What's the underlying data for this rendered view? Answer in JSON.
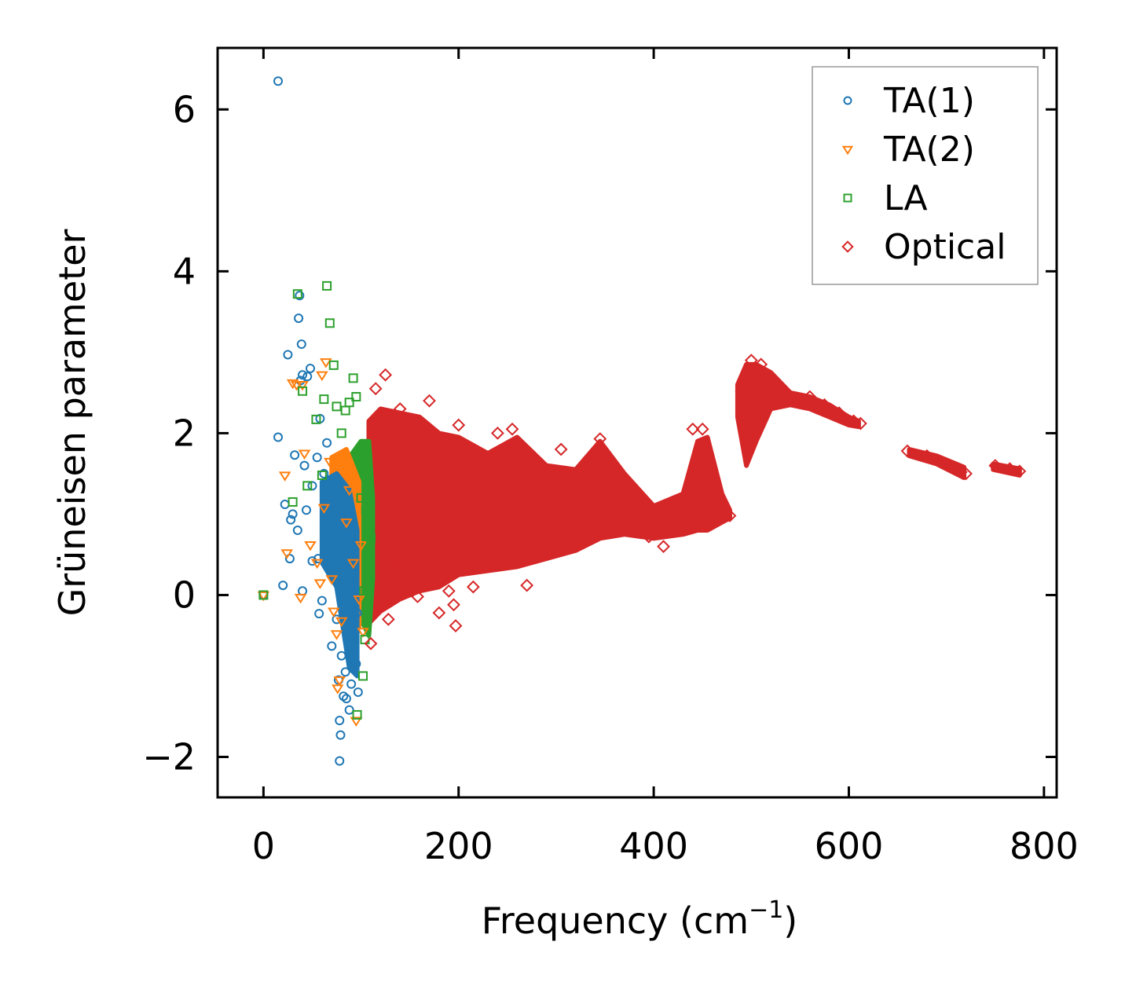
{
  "chart_data": {
    "type": "scatter",
    "title": "",
    "xlabel": "Frequency (cm",
    "xlabel_sup": "−1",
    "xlabel_close": ")",
    "ylabel": "Grüneisen parameter",
    "xlim": [
      -47,
      813
    ],
    "ylim": [
      -2.5,
      6.76
    ],
    "xticks": [
      0,
      200,
      400,
      600,
      800
    ],
    "yticks": [
      -2,
      0,
      2,
      4,
      6
    ],
    "xtick_labels": [
      "0",
      "200",
      "400",
      "600",
      "800"
    ],
    "ytick_labels": [
      "−2",
      "0",
      "2",
      "4",
      "6"
    ],
    "legend_position": "top-right",
    "series": [
      {
        "name": "TA(1)",
        "marker": "circle",
        "color": "#1f77b4",
        "points": [
          [
            0,
            0
          ],
          [
            15,
            6.35
          ],
          [
            15,
            1.95
          ],
          [
            20,
            0.12
          ],
          [
            22,
            1.12
          ],
          [
            25,
            2.97
          ],
          [
            27,
            0.45
          ],
          [
            28,
            0.93
          ],
          [
            30,
            1.0
          ],
          [
            32,
            1.73
          ],
          [
            35,
            0.8
          ],
          [
            36,
            3.42
          ],
          [
            37,
            3.7
          ],
          [
            38,
            2.65
          ],
          [
            39,
            3.1
          ],
          [
            40,
            0.05
          ],
          [
            40,
            2.72
          ],
          [
            42,
            1.6
          ],
          [
            44,
            1.05
          ],
          [
            45,
            2.7
          ],
          [
            48,
            2.8
          ],
          [
            50,
            0.42
          ],
          [
            50,
            1.35
          ],
          [
            55,
            1.7
          ],
          [
            56,
            0.45
          ],
          [
            57,
            -0.23
          ],
          [
            58,
            2.18
          ],
          [
            60,
            -0.07
          ],
          [
            62,
            1.5
          ],
          [
            65,
            1.88
          ],
          [
            68,
            0.85
          ],
          [
            70,
            -0.63
          ],
          [
            72,
            1.05
          ],
          [
            75,
            -0.3
          ],
          [
            77,
            -1.05
          ],
          [
            78,
            -1.55
          ],
          [
            78,
            -2.05
          ],
          [
            79,
            -1.73
          ],
          [
            80,
            -0.75
          ],
          [
            82,
            -1.25
          ],
          [
            84,
            -0.95
          ],
          [
            85,
            -1.28
          ],
          [
            88,
            -1.42
          ],
          [
            90,
            -1.1
          ],
          [
            92,
            -0.7
          ],
          [
            94,
            -0.45
          ],
          [
            95,
            -0.85
          ],
          [
            96,
            -0.22
          ],
          [
            97,
            -1.2
          ]
        ]
      },
      {
        "name": "TA(2)",
        "marker": "triangle-down",
        "color": "#ff7f0e",
        "points": [
          [
            0,
            0
          ],
          [
            22,
            1.48
          ],
          [
            24,
            0.52
          ],
          [
            30,
            2.62
          ],
          [
            34,
            2.6
          ],
          [
            38,
            -0.03
          ],
          [
            40,
            2.6
          ],
          [
            42,
            1.75
          ],
          [
            48,
            0.62
          ],
          [
            55,
            0.4
          ],
          [
            58,
            0.15
          ],
          [
            60,
            2.72
          ],
          [
            62,
            1.08
          ],
          [
            64,
            2.88
          ],
          [
            68,
            1.65
          ],
          [
            70,
            0.2
          ],
          [
            72,
            -0.2
          ],
          [
            75,
            -0.48
          ],
          [
            76,
            -1.15
          ],
          [
            78,
            -1.05
          ],
          [
            80,
            -0.32
          ],
          [
            85,
            0.9
          ],
          [
            88,
            1.3
          ],
          [
            92,
            0.4
          ],
          [
            95,
            -1.55
          ],
          [
            98,
            -0.05
          ],
          [
            100,
            0.62
          ],
          [
            102,
            -0.45
          ]
        ]
      },
      {
        "name": "LA",
        "marker": "square",
        "color": "#2ca02c",
        "points": [
          [
            0,
            0
          ],
          [
            30,
            1.15
          ],
          [
            35,
            3.72
          ],
          [
            40,
            2.52
          ],
          [
            45,
            1.35
          ],
          [
            54,
            2.17
          ],
          [
            60,
            1.48
          ],
          [
            62,
            2.42
          ],
          [
            65,
            3.82
          ],
          [
            68,
            3.36
          ],
          [
            72,
            2.84
          ],
          [
            75,
            2.33
          ],
          [
            80,
            2.0
          ],
          [
            84,
            2.28
          ],
          [
            88,
            2.38
          ],
          [
            92,
            2.68
          ],
          [
            95,
            2.45
          ],
          [
            96,
            -1.48
          ],
          [
            100,
            1.2
          ],
          [
            102,
            -1.0
          ],
          [
            103,
            0.05
          ],
          [
            104,
            -0.55
          ],
          [
            105,
            1.05
          ],
          [
            106,
            0.75
          ],
          [
            108,
            0.3
          ],
          [
            110,
            0.7
          ]
        ]
      },
      {
        "name": "Optical",
        "marker": "diamond",
        "color": "#d62728",
        "points": [
          [
            110,
            -0.6
          ],
          [
            115,
            2.55
          ],
          [
            120,
            -0.15
          ],
          [
            125,
            2.72
          ],
          [
            128,
            -0.3
          ],
          [
            135,
            0.4
          ],
          [
            140,
            2.3
          ],
          [
            150,
            2.1
          ],
          [
            158,
            -0.02
          ],
          [
            170,
            2.4
          ],
          [
            180,
            -0.22
          ],
          [
            190,
            0.05
          ],
          [
            195,
            -0.12
          ],
          [
            197,
            -0.38
          ],
          [
            200,
            2.1
          ],
          [
            215,
            0.1
          ],
          [
            240,
            2.0
          ],
          [
            255,
            2.05
          ],
          [
            270,
            0.12
          ],
          [
            300,
            0.55
          ],
          [
            305,
            1.8
          ],
          [
            330,
            0.7
          ],
          [
            345,
            1.93
          ],
          [
            370,
            1.25
          ],
          [
            380,
            0.88
          ],
          [
            395,
            0.72
          ],
          [
            410,
            0.6
          ],
          [
            425,
            0.95
          ],
          [
            440,
            2.05
          ],
          [
            450,
            2.05
          ],
          [
            460,
            1.3
          ],
          [
            470,
            1.05
          ],
          [
            478,
            0.98
          ],
          [
            490,
            2.52
          ],
          [
            500,
            2.9
          ],
          [
            510,
            2.85
          ],
          [
            520,
            2.7
          ],
          [
            530,
            2.55
          ],
          [
            545,
            2.42
          ],
          [
            560,
            2.45
          ],
          [
            575,
            2.35
          ],
          [
            590,
            2.25
          ],
          [
            605,
            2.15
          ],
          [
            612,
            2.12
          ],
          [
            660,
            1.78
          ],
          [
            680,
            1.72
          ],
          [
            700,
            1.62
          ],
          [
            715,
            1.52
          ],
          [
            720,
            1.5
          ],
          [
            750,
            1.6
          ],
          [
            765,
            1.56
          ],
          [
            775,
            1.53
          ]
        ]
      }
    ]
  }
}
